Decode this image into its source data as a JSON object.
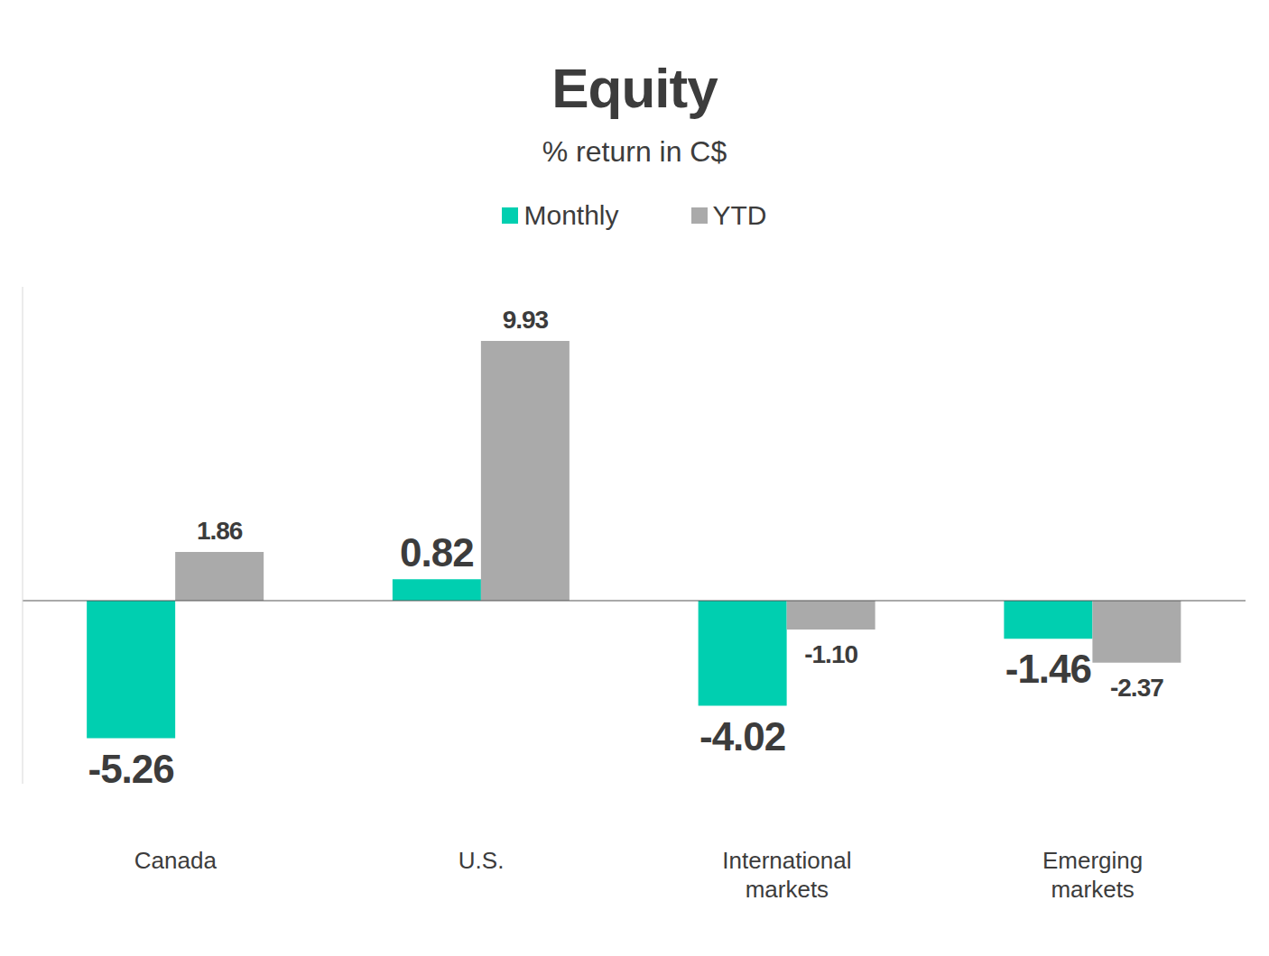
{
  "chart_data": {
    "type": "bar",
    "title": "Equity",
    "subtitle": "% return in C$",
    "categories": [
      "Canada",
      "U.S.",
      "International markets",
      "Emerging markets"
    ],
    "series": [
      {
        "name": "Monthly",
        "color": "#00cfb0",
        "values": [
          -5.26,
          0.82,
          -4.02,
          -1.46
        ],
        "value_labels": [
          "-5.26",
          "0.82",
          "-4.02",
          "-1.46"
        ]
      },
      {
        "name": "YTD",
        "color": "#aaaaaa",
        "values": [
          1.86,
          9.93,
          -1.1,
          -2.37
        ],
        "value_labels": [
          "1.86",
          "9.93",
          "-1.10",
          "-2.37"
        ]
      }
    ],
    "ylim": [
      -7,
      12
    ],
    "data_labels": true,
    "tick_labels": "x",
    "legend": "top",
    "grid": false
  }
}
